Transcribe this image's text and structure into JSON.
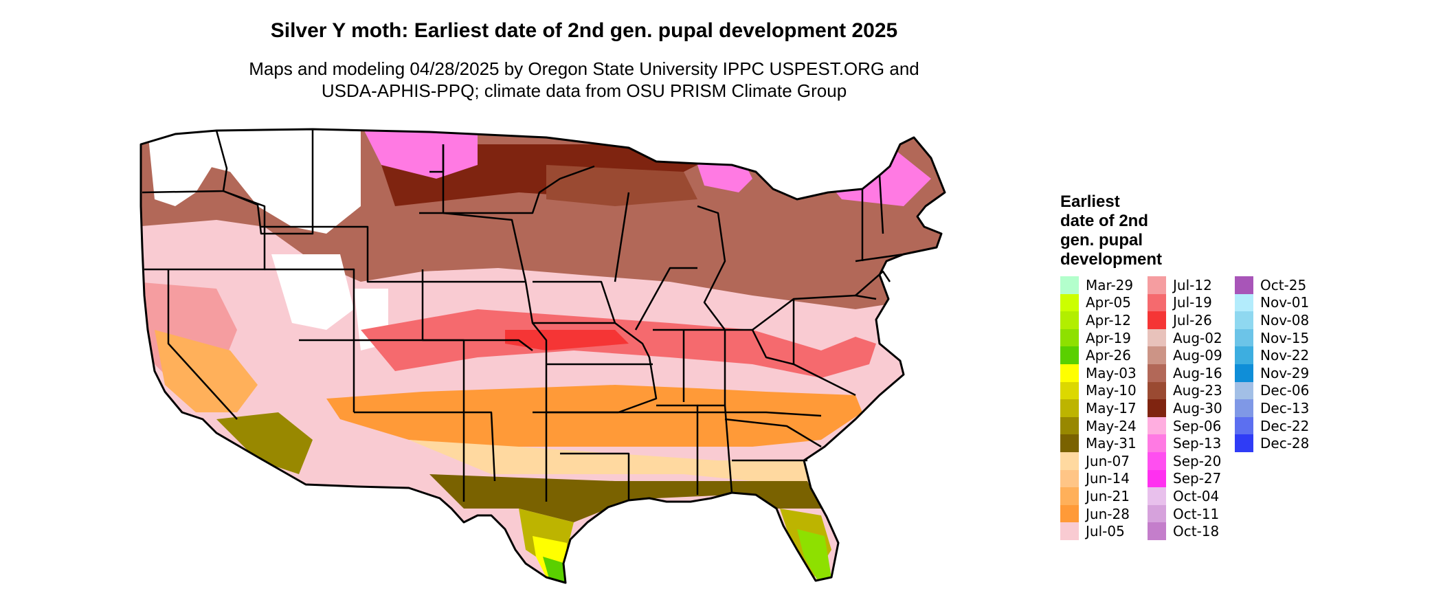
{
  "title": "Silver Y moth: Earliest date of 2nd gen. pupal development 2025",
  "subtitle_lines": [
    "Maps and modeling 04/28/2025 by Oregon State University IPPC USPEST.ORG and",
    "USDA-APHIS-PPQ; climate data from OSU PRISM Climate Group"
  ],
  "legend": {
    "title": "Earliest\ndate of 2nd\ngen. pupal\ndevelopment",
    "items": [
      {
        "label": "Mar-29",
        "color": "#b3ffcc"
      },
      {
        "label": "Apr-05",
        "color": "#ccff00"
      },
      {
        "label": "Apr-12",
        "color": "#b2ee00"
      },
      {
        "label": "Apr-19",
        "color": "#8ee000"
      },
      {
        "label": "Apr-26",
        "color": "#5ad000"
      },
      {
        "label": "May-03",
        "color": "#ffff00"
      },
      {
        "label": "May-10",
        "color": "#dcd800"
      },
      {
        "label": "May-17",
        "color": "#bdb400"
      },
      {
        "label": "May-24",
        "color": "#988800"
      },
      {
        "label": "May-31",
        "color": "#7a6200"
      },
      {
        "label": "Jun-07",
        "color": "#ffd9a0"
      },
      {
        "label": "Jun-14",
        "color": "#ffc586"
      },
      {
        "label": "Jun-21",
        "color": "#ffb05a"
      },
      {
        "label": "Jun-28",
        "color": "#ff9a38"
      },
      {
        "label": "Jul-05",
        "color": "#f9cbd2"
      },
      {
        "label": "Jul-12",
        "color": "#f59da0"
      },
      {
        "label": "Jul-19",
        "color": "#f56a6e"
      },
      {
        "label": "Jul-26",
        "color": "#f53535"
      },
      {
        "label": "Aug-02",
        "color": "#e8c2bb"
      },
      {
        "label": "Aug-09",
        "color": "#cc9486"
      },
      {
        "label": "Aug-16",
        "color": "#b26858"
      },
      {
        "label": "Aug-23",
        "color": "#9a4a32"
      },
      {
        "label": "Aug-30",
        "color": "#7f2410"
      },
      {
        "label": "Sep-06",
        "color": "#ffaee0"
      },
      {
        "label": "Sep-13",
        "color": "#ff7ae3"
      },
      {
        "label": "Sep-20",
        "color": "#ff4ff0"
      },
      {
        "label": "Sep-27",
        "color": "#ff30f0"
      },
      {
        "label": "Oct-04",
        "color": "#e8c0ec"
      },
      {
        "label": "Oct-11",
        "color": "#d6a2dc"
      },
      {
        "label": "Oct-18",
        "color": "#c47ecb"
      },
      {
        "label": "Oct-25",
        "color": "#a855b8"
      },
      {
        "label": "Nov-01",
        "color": "#b3ecfc"
      },
      {
        "label": "Nov-08",
        "color": "#8fd8f0"
      },
      {
        "label": "Nov-15",
        "color": "#6cc4e8"
      },
      {
        "label": "Nov-22",
        "color": "#3daee0"
      },
      {
        "label": "Nov-29",
        "color": "#0f8ed8"
      },
      {
        "label": "Dec-06",
        "color": "#a2bfe6"
      },
      {
        "label": "Dec-13",
        "color": "#7f98e6"
      },
      {
        "label": "Dec-22",
        "color": "#5c6ff0"
      },
      {
        "label": "Dec-28",
        "color": "#2f3cf6"
      }
    ]
  }
}
